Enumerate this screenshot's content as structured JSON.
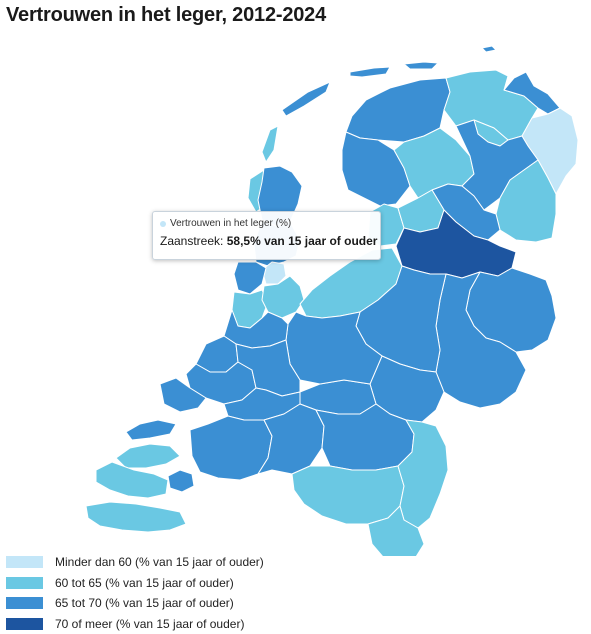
{
  "title": "Vertrouwen in het leger, 2012-2024",
  "colors": {
    "c1": "#c3e6f8",
    "c2": "#6ac8e3",
    "c3": "#3b8fd3",
    "c4": "#1d55a0"
  },
  "tooltip": {
    "series": "Vertrouwen in het leger (%)",
    "region": "Zaanstreek:",
    "value": "58,5% van 15 jaar of ouder"
  },
  "legend": [
    {
      "label": "Minder dan 60 (% van 15 jaar of ouder)",
      "color": "c1"
    },
    {
      "label": "60 tot 65 (% van 15 jaar of ouder)",
      "color": "c2"
    },
    {
      "label": "65 tot 70 (% van 15 jaar of ouder)",
      "color": "c3"
    },
    {
      "label": "70 of meer (% van 15 jaar of ouder)",
      "color": "c4"
    }
  ],
  "regions": [
    {
      "id": "texel",
      "cls": "c2"
    },
    {
      "id": "vlieland",
      "cls": "c2"
    },
    {
      "id": "terschelling",
      "cls": "c3"
    },
    {
      "id": "ameland",
      "cls": "c3"
    },
    {
      "id": "schiermonnikoog",
      "cls": "c3"
    },
    {
      "id": "noord-friesland",
      "cls": "c3"
    },
    {
      "id": "zuidwest-friesland",
      "cls": "c3"
    },
    {
      "id": "zuidoost-friesland",
      "cls": "c2"
    },
    {
      "id": "noord-groningen",
      "cls": "c2"
    },
    {
      "id": "delfzijl",
      "cls": "c3"
    },
    {
      "id": "groningen-stad",
      "cls": "c2"
    },
    {
      "id": "oost-groningen",
      "cls": "c1"
    },
    {
      "id": "noord-drenthe",
      "cls": "c3"
    },
    {
      "id": "zuidoost-drenthe",
      "cls": "c2"
    },
    {
      "id": "zuidwest-drenthe",
      "cls": "c3"
    },
    {
      "id": "kop-noord-holland",
      "cls": "c3"
    },
    {
      "id": "alkmaar",
      "cls": "c3"
    },
    {
      "id": "zaanstreek",
      "cls": "c1"
    },
    {
      "id": "ijmond",
      "cls": "c3"
    },
    {
      "id": "haarlem",
      "cls": "c2"
    },
    {
      "id": "amsterdam",
      "cls": "c2"
    },
    {
      "id": "flevoland",
      "cls": "c2"
    },
    {
      "id": "kop-overijssel",
      "cls": "c2"
    },
    {
      "id": "noord-overijssel",
      "cls": "c4"
    },
    {
      "id": "twente",
      "cls": "c3"
    },
    {
      "id": "achterhoek",
      "cls": "c3"
    },
    {
      "id": "veluwe",
      "cls": "c3"
    },
    {
      "id": "arnhem-nijmegen",
      "cls": "c3"
    },
    {
      "id": "utrecht",
      "cls": "c3"
    },
    {
      "id": "zuid-holland-noord",
      "cls": "c3"
    },
    {
      "id": "den-haag",
      "cls": "c3"
    },
    {
      "id": "rotterdam",
      "cls": "c3"
    },
    {
      "id": "zuid-holland-oost",
      "cls": "c3"
    },
    {
      "id": "zuid-holland-zuid",
      "cls": "c3"
    },
    {
      "id": "rivierenland",
      "cls": "c3"
    },
    {
      "id": "west-brabant",
      "cls": "c3"
    },
    {
      "id": "midden-brabant",
      "cls": "c3"
    },
    {
      "id": "noordoost-brabant",
      "cls": "c3"
    },
    {
      "id": "zuidoost-brabant",
      "cls": "c2"
    },
    {
      "id": "noord-limburg",
      "cls": "c2"
    },
    {
      "id": "midden-limburg",
      "cls": "c2"
    },
    {
      "id": "zuid-limburg",
      "cls": "c2"
    },
    {
      "id": "zeeuws-vlaanderen",
      "cls": "c2"
    },
    {
      "id": "walcheren-beveland",
      "cls": "c2"
    },
    {
      "id": "schouwen",
      "cls": "c2"
    },
    {
      "id": "goeree",
      "cls": "c3"
    },
    {
      "id": "voorne",
      "cls": "c3"
    },
    {
      "id": "tholen",
      "cls": "c3"
    }
  ]
}
